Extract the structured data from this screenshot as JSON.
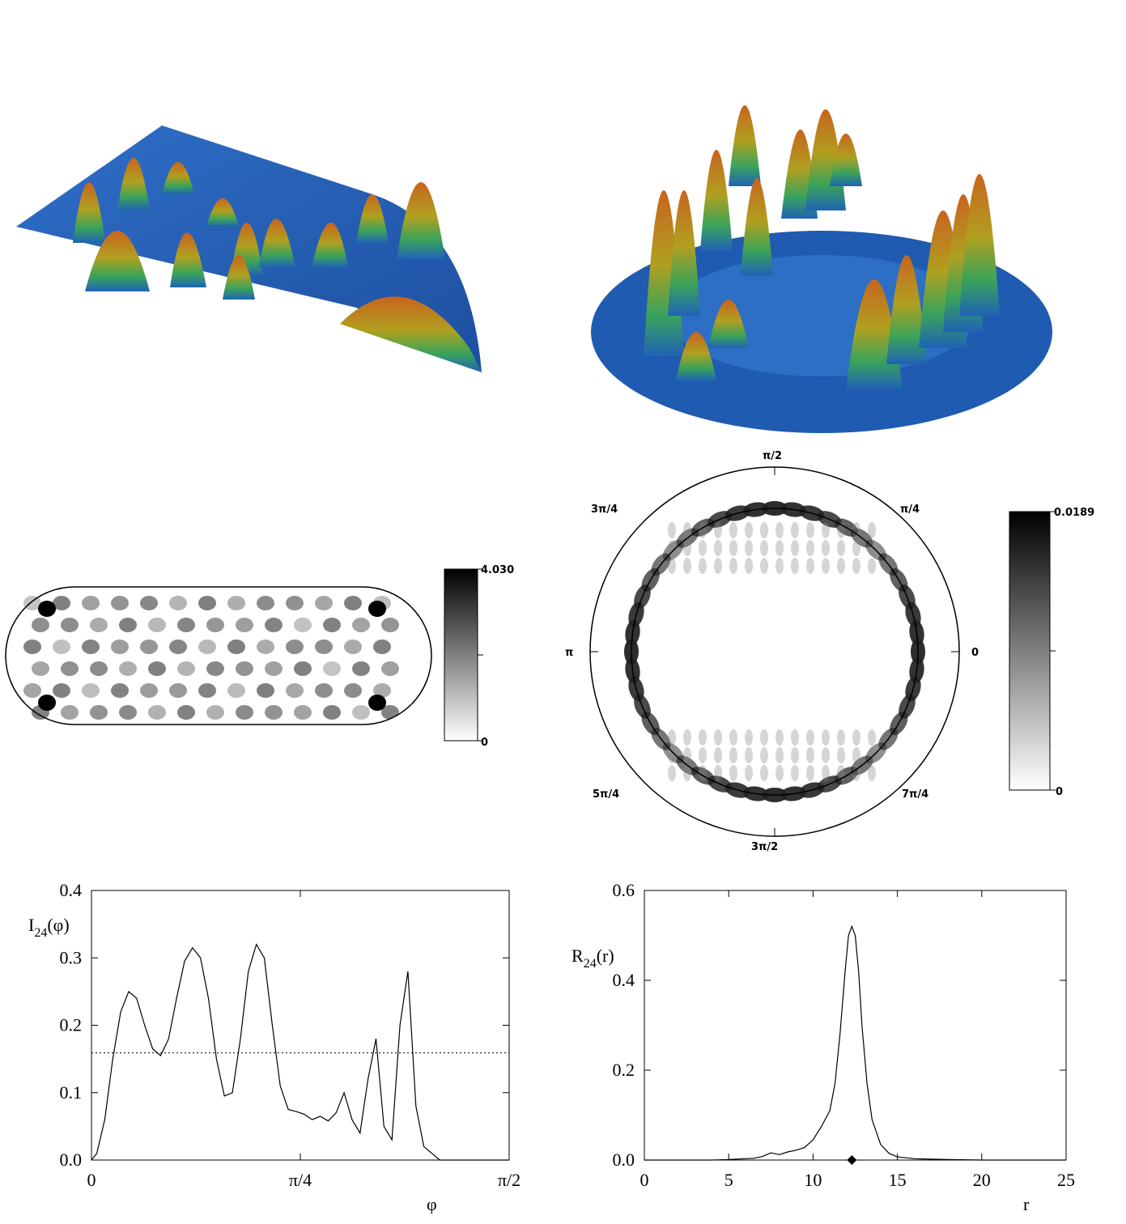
{
  "colorbar_stadium": {
    "max": "4.030",
    "min": "0"
  },
  "colorbar_circle": {
    "max": "0.0189",
    "min": "0"
  },
  "polar_labels": {
    "top": "π/2",
    "upper_left": "3π/4",
    "upper_right": "π/4",
    "left": "π",
    "right": "0",
    "lower_left": "5π/4",
    "lower_right": "7π/4",
    "bottom": "3π/2"
  },
  "chart_data": [
    {
      "type": "line",
      "ylabel_main": "I",
      "ylabel_sub": "24",
      "ylabel_arg": "(φ)",
      "xlabel": "φ",
      "xlim": [
        0,
        1.5708
      ],
      "ylim": [
        0,
        0.4
      ],
      "xticks": [
        {
          "value": 0,
          "label": "0"
        },
        {
          "value": 0.7854,
          "label": "π/4"
        },
        {
          "value": 1.5708,
          "label": "π/2"
        }
      ],
      "yticks": [
        {
          "value": 0.0,
          "label": "0.0"
        },
        {
          "value": 0.1,
          "label": "0.1"
        },
        {
          "value": 0.2,
          "label": "0.2"
        },
        {
          "value": 0.3,
          "label": "0.3"
        },
        {
          "value": 0.4,
          "label": "0.4"
        }
      ],
      "reference_line": {
        "y": 0.159,
        "style": "dotted"
      },
      "x": [
        0,
        0.02,
        0.05,
        0.08,
        0.11,
        0.14,
        0.17,
        0.2,
        0.23,
        0.26,
        0.29,
        0.32,
        0.35,
        0.38,
        0.41,
        0.44,
        0.47,
        0.5,
        0.53,
        0.56,
        0.59,
        0.62,
        0.65,
        0.68,
        0.71,
        0.74,
        0.77,
        0.8,
        0.83,
        0.86,
        0.89,
        0.92,
        0.95,
        0.98,
        1.01,
        1.04,
        1.07,
        1.1,
        1.13,
        1.16,
        1.19,
        1.22,
        1.25,
        1.28,
        1.31,
        1.34,
        1.37,
        1.4,
        1.42,
        1.44,
        1.46,
        1.48,
        1.5,
        1.52,
        1.54,
        1.56,
        1.5708
      ],
      "y": [
        0.0,
        0.01,
        0.06,
        0.15,
        0.22,
        0.25,
        0.24,
        0.2,
        0.165,
        0.155,
        0.18,
        0.24,
        0.295,
        0.315,
        0.3,
        0.24,
        0.15,
        0.095,
        0.1,
        0.18,
        0.28,
        0.32,
        0.3,
        0.2,
        0.11,
        0.075,
        0.072,
        0.068,
        0.06,
        0.065,
        0.058,
        0.07,
        0.1,
        0.06,
        0.04,
        0.12,
        0.18,
        0.05,
        0.03,
        0.2,
        0.28,
        0.08,
        0.02,
        0.01,
        0.0,
        0.0,
        0.0,
        0.0,
        0.0,
        0.0,
        0.0,
        0.0,
        0.0,
        0.0,
        0.0,
        0.0,
        0.0
      ]
    },
    {
      "type": "line",
      "ylabel_main": "R",
      "ylabel_sub": "24",
      "ylabel_arg": "(r)",
      "xlabel": "r",
      "xlim": [
        0,
        25
      ],
      "ylim": [
        0,
        0.6
      ],
      "xticks": [
        {
          "value": 0,
          "label": "0"
        },
        {
          "value": 5,
          "label": "5"
        },
        {
          "value": 10,
          "label": "10"
        },
        {
          "value": 15,
          "label": "15"
        },
        {
          "value": 20,
          "label": "20"
        },
        {
          "value": 25,
          "label": "25"
        }
      ],
      "yticks": [
        {
          "value": 0.0,
          "label": "0.0"
        },
        {
          "value": 0.2,
          "label": "0.2"
        },
        {
          "value": 0.4,
          "label": "0.4"
        },
        {
          "value": 0.6,
          "label": "0.6"
        }
      ],
      "marker": {
        "x": 12.3,
        "y": 0.0,
        "shape": "diamond"
      },
      "x": [
        0,
        4,
        5,
        6,
        6.5,
        7,
        7.5,
        8,
        8.5,
        9,
        9.5,
        10,
        10.5,
        11,
        11.3,
        11.6,
        11.9,
        12.1,
        12.3,
        12.5,
        12.7,
        12.9,
        13.2,
        13.5,
        14,
        14.5,
        15,
        16,
        17,
        18,
        20,
        22,
        25
      ],
      "y": [
        0.0,
        0.0,
        0.001,
        0.003,
        0.004,
        0.008,
        0.016,
        0.012,
        0.018,
        0.022,
        0.028,
        0.045,
        0.075,
        0.11,
        0.17,
        0.28,
        0.42,
        0.5,
        0.52,
        0.5,
        0.42,
        0.3,
        0.17,
        0.09,
        0.035,
        0.015,
        0.007,
        0.003,
        0.002,
        0.001,
        0.0,
        0.0,
        0.0
      ]
    }
  ]
}
